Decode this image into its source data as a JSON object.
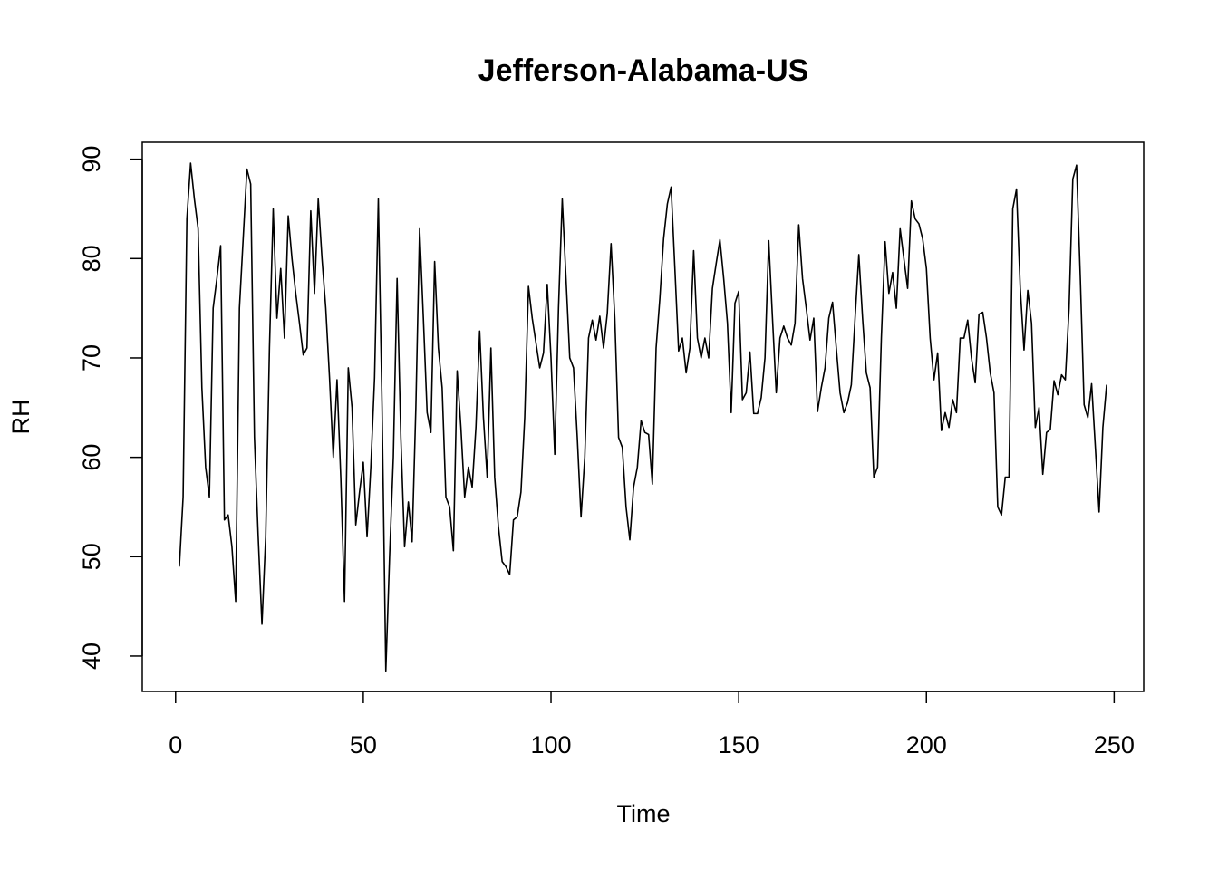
{
  "chart_data": {
    "type": "line",
    "title": "Jefferson-Alabama-US",
    "x_label": "Time",
    "y_label": "RH",
    "color": "#000000",
    "xlim": [
      -8.88,
      257.88
    ],
    "ylim": [
      36.44,
      91.7
    ],
    "xticks": [
      0,
      50,
      100,
      150,
      200,
      250
    ],
    "yticks": [
      40,
      50,
      60,
      70,
      80,
      90
    ],
    "x": [
      1,
      2,
      3,
      4,
      5,
      6,
      7,
      8,
      9,
      10,
      11,
      12,
      13,
      14,
      15,
      16,
      17,
      18,
      19,
      20,
      21,
      22,
      23,
      24,
      25,
      26,
      27,
      28,
      29,
      30,
      31,
      32,
      33,
      34,
      35,
      36,
      37,
      38,
      39,
      40,
      41,
      42,
      43,
      44,
      45,
      46,
      47,
      48,
      49,
      50,
      51,
      52,
      53,
      54,
      55,
      56,
      57,
      58,
      59,
      60,
      61,
      62,
      63,
      64,
      65,
      66,
      67,
      68,
      69,
      70,
      71,
      72,
      73,
      74,
      75,
      76,
      77,
      78,
      79,
      80,
      81,
      82,
      83,
      84,
      85,
      86,
      87,
      88,
      89,
      90,
      91,
      92,
      93,
      94,
      95,
      96,
      97,
      98,
      99,
      100,
      101,
      102,
      103,
      104,
      105,
      106,
      107,
      108,
      109,
      110,
      111,
      112,
      113,
      114,
      115,
      116,
      117,
      118,
      119,
      120,
      121,
      122,
      123,
      124,
      125,
      126,
      127,
      128,
      129,
      130,
      131,
      132,
      133,
      134,
      135,
      136,
      137,
      138,
      139,
      140,
      141,
      142,
      143,
      144,
      145,
      146,
      147,
      148,
      149,
      150,
      151,
      152,
      153,
      154,
      155,
      156,
      157,
      158,
      159,
      160,
      161,
      162,
      163,
      164,
      165,
      166,
      167,
      168,
      169,
      170,
      171,
      172,
      173,
      174,
      175,
      176,
      177,
      178,
      179,
      180,
      181,
      182,
      183,
      184,
      185,
      186,
      187,
      188,
      189,
      190,
      191,
      192,
      193,
      194,
      195,
      196,
      197,
      198,
      199,
      200,
      201,
      202,
      203,
      204,
      205,
      206,
      207,
      208,
      209,
      210,
      211,
      212,
      213,
      214,
      215,
      216,
      217,
      218,
      219,
      220,
      221,
      222,
      223,
      224,
      225,
      226,
      227,
      228,
      229,
      230,
      231,
      232,
      233,
      234,
      235,
      236,
      237,
      238,
      239,
      240,
      241,
      242,
      243,
      244,
      245,
      246,
      247,
      248
    ],
    "values": [
      49,
      56,
      84,
      89.6,
      86,
      83,
      67,
      59,
      56,
      75,
      78,
      81.3,
      53.7,
      54.2,
      51,
      45.5,
      75,
      82,
      89,
      87.5,
      62,
      52,
      43.2,
      52,
      71,
      85,
      74,
      79,
      72,
      84.3,
      80,
      76.5,
      73.5,
      70.3,
      71,
      84.8,
      76.5,
      86,
      80,
      75,
      68,
      60,
      67.8,
      58,
      45.5,
      69,
      65,
      53.2,
      56.5,
      59.5,
      52,
      59,
      68,
      86,
      65,
      38.5,
      50,
      60,
      78,
      62,
      51,
      55.5,
      51.5,
      65,
      83,
      74,
      64.5,
      62.5,
      79.7,
      71,
      67,
      56,
      55,
      50.6,
      68.7,
      63,
      56,
      59,
      57,
      63,
      72.7,
      64,
      58,
      71,
      58,
      53,
      49.5,
      49,
      48.2,
      53.7,
      54,
      56.5,
      64,
      77.2,
      74,
      71.5,
      69,
      70.5,
      77.4,
      70,
      60.3,
      75,
      86,
      78,
      70,
      69,
      62,
      54,
      60,
      72,
      73.8,
      71.8,
      74.2,
      71,
      74.5,
      81.5,
      74,
      62,
      61,
      55,
      51.7,
      57,
      59,
      63.7,
      62.5,
      62.3,
      57.3,
      71,
      76,
      82,
      85.5,
      87.2,
      79,
      70.7,
      72,
      68.5,
      71,
      80.8,
      72,
      70,
      72,
      70,
      77,
      79.5,
      81.9,
      78,
      73.5,
      64.5,
      75.5,
      76.7,
      65.8,
      66.5,
      70.6,
      64.4,
      64.4,
      66,
      70,
      81.8,
      74,
      66.5,
      72,
      73.2,
      72,
      71.3,
      73.5,
      83.4,
      78,
      75,
      71.8,
      74,
      64.6,
      67,
      69,
      74,
      75.6,
      71,
      66.5,
      64.5,
      65.5,
      67.3,
      74,
      80.4,
      74,
      68.5,
      67,
      58,
      59,
      72,
      81.7,
      76.5,
      78.6,
      75,
      83,
      80,
      77,
      85.8,
      84,
      83.5,
      82,
      79,
      72,
      67.8,
      70.5,
      62.7,
      64.5,
      63,
      65.8,
      64.5,
      72,
      72,
      73.8,
      70,
      67.5,
      74.4,
      74.6,
      72,
      68.5,
      66.5,
      55,
      54.2,
      58,
      58,
      85,
      87,
      77,
      70.8,
      76.8,
      73.5,
      63,
      65,
      58.3,
      62.5,
      62.8,
      67.7,
      66.3,
      68.3,
      67.8,
      75,
      88,
      89.4,
      78,
      65.3,
      64,
      67.4,
      61,
      54.5,
      63,
      67.3
    ]
  }
}
